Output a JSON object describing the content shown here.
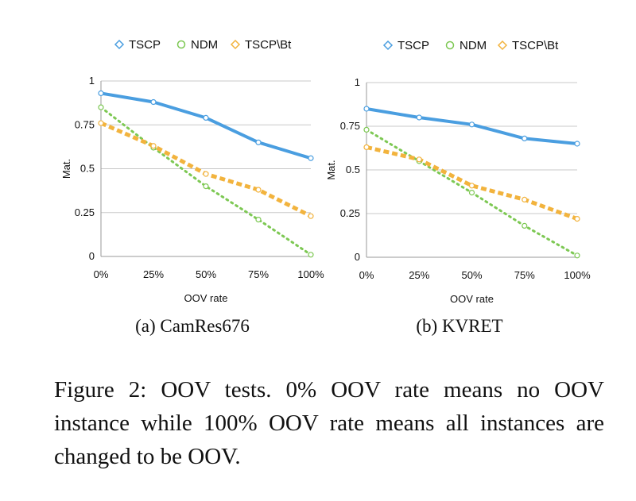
{
  "chart_data": [
    {
      "type": "line",
      "title": "",
      "xlabel": "OOV rate",
      "ylabel": "Mat.",
      "categories": [
        "0%",
        "25%",
        "50%",
        "75%",
        "100%"
      ],
      "ylim": [
        0,
        1
      ],
      "yticks": [
        "0",
        "0.25",
        "0.5",
        "0.75",
        "1"
      ],
      "grid": true,
      "legend": "top",
      "series": [
        {
          "name": "TSCP",
          "color": "#4a9ee0",
          "style": "solid",
          "marker": "diamond",
          "values": [
            0.93,
            0.88,
            0.79,
            0.65,
            0.56
          ]
        },
        {
          "name": "NDM",
          "color": "#7dc853",
          "style": "dotted",
          "marker": "circle",
          "values": [
            0.85,
            0.62,
            0.4,
            0.21,
            0.01
          ]
        },
        {
          "name": "TSCP\\Bt",
          "color": "#f2b33d",
          "style": "dashed",
          "marker": "diamond",
          "values": [
            0.76,
            0.63,
            0.47,
            0.38,
            0.23
          ]
        }
      ],
      "caption": "(a) CamRes676"
    },
    {
      "type": "line",
      "title": "",
      "xlabel": "OOV rate",
      "ylabel": "Mat.",
      "categories": [
        "0%",
        "25%",
        "50%",
        "75%",
        "100%"
      ],
      "ylim": [
        0,
        1
      ],
      "yticks": [
        "0",
        "0.25",
        "0.5",
        "0.75",
        "1"
      ],
      "grid": true,
      "legend": "top",
      "series": [
        {
          "name": "TSCP",
          "color": "#4a9ee0",
          "style": "solid",
          "marker": "diamond",
          "values": [
            0.85,
            0.8,
            0.76,
            0.68,
            0.65
          ]
        },
        {
          "name": "NDM",
          "color": "#7dc853",
          "style": "dotted",
          "marker": "circle",
          "values": [
            0.73,
            0.55,
            0.37,
            0.18,
            0.01
          ]
        },
        {
          "name": "TSCP\\Bt",
          "color": "#f2b33d",
          "style": "dashed",
          "marker": "diamond",
          "values": [
            0.63,
            0.56,
            0.41,
            0.33,
            0.22
          ]
        }
      ],
      "caption": "(b) KVRET"
    }
  ],
  "figure_caption": "Figure 2: OOV tests. 0% OOV rate means no OOV instance while 100% OOV rate means all instances are changed to be OOV."
}
